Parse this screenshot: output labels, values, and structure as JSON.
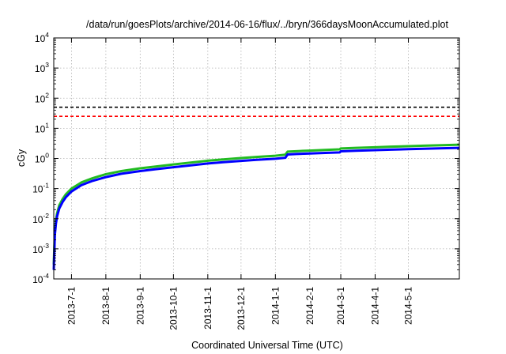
{
  "chart_data": {
    "type": "line",
    "title": "/data/run/goesPlots/archive/2014-06-16/flux/../bryn/366daysMoonAccumulated.plot",
    "xlabel": "Coordinated Universal Time (UTC)",
    "ylabel": "cGy",
    "yscale": "log",
    "ylim": [
      0.0001,
      10000
    ],
    "xlim": [
      "2013-06-15",
      "2014-06-16"
    ],
    "grid": true,
    "x_ticks": [
      "2013-7-1",
      "2013-8-1",
      "2013-9-1",
      "2013-10-1",
      "2013-11-1",
      "2013-12-1",
      "2014-1-1",
      "2014-2-1",
      "2014-3-1",
      "2014-4-1",
      "2014-5-1"
    ],
    "y_ticks": [
      {
        "base": "10",
        "exp": "-4",
        "value": 0.0001
      },
      {
        "base": "10",
        "exp": "-3",
        "value": 0.001
      },
      {
        "base": "10",
        "exp": "-2",
        "value": 0.01
      },
      {
        "base": "10",
        "exp": "-1",
        "value": 0.1
      },
      {
        "base": "10",
        "exp": "0",
        "value": 1
      },
      {
        "base": "10",
        "exp": "1",
        "value": 10
      },
      {
        "base": "10",
        "exp": "2",
        "value": 100
      },
      {
        "base": "10",
        "exp": "3",
        "value": 1000
      },
      {
        "base": "10",
        "exp": "4",
        "value": 10000
      }
    ],
    "thresholds": [
      {
        "value": 50,
        "color": "#000000",
        "style": "dashed"
      },
      {
        "value": 25,
        "color": "#ff0000",
        "style": "dashed"
      }
    ],
    "series": [
      {
        "color": "#22bb22",
        "x": [
          "2013-06-15",
          "2013-06-16",
          "2013-06-17",
          "2013-06-18",
          "2013-06-20",
          "2013-06-23",
          "2013-06-26",
          "2013-07-01",
          "2013-07-10",
          "2013-07-20",
          "2013-08-01",
          "2013-08-15",
          "2013-09-01",
          "2013-09-15",
          "2013-10-01",
          "2013-10-15",
          "2013-11-01",
          "2013-11-15",
          "2013-12-01",
          "2013-12-15",
          "2014-01-01",
          "2014-01-10",
          "2014-01-12",
          "2014-01-20",
          "2014-02-01",
          "2014-02-15",
          "2014-02-28",
          "2014-03-01",
          "2014-03-15",
          "2014-04-01",
          "2014-04-15",
          "2014-05-01",
          "2014-05-15",
          "2014-06-01",
          "2014-06-16"
        ],
        "y": [
          0.0003,
          0.004,
          0.009,
          0.015,
          0.028,
          0.045,
          0.065,
          0.1,
          0.16,
          0.22,
          0.3,
          0.38,
          0.47,
          0.54,
          0.63,
          0.72,
          0.84,
          0.93,
          1.03,
          1.12,
          1.23,
          1.33,
          1.68,
          1.74,
          1.82,
          1.92,
          2.0,
          2.15,
          2.25,
          2.35,
          2.45,
          2.55,
          2.65,
          2.75,
          2.85
        ]
      },
      {
        "color": "#0000ff",
        "x": [
          "2013-06-15",
          "2013-06-16",
          "2013-06-17",
          "2013-06-18",
          "2013-06-20",
          "2013-06-23",
          "2013-06-26",
          "2013-07-01",
          "2013-07-10",
          "2013-07-20",
          "2013-08-01",
          "2013-08-15",
          "2013-09-01",
          "2013-09-15",
          "2013-10-01",
          "2013-10-15",
          "2013-11-01",
          "2013-11-15",
          "2013-12-01",
          "2013-12-15",
          "2014-01-01",
          "2014-01-10",
          "2014-01-12",
          "2014-01-20",
          "2014-02-01",
          "2014-02-15",
          "2014-02-28",
          "2014-03-01",
          "2014-03-15",
          "2014-04-01",
          "2014-04-15",
          "2014-05-01",
          "2014-05-15",
          "2014-06-01",
          "2014-06-16"
        ],
        "y": [
          0.0002,
          0.003,
          0.007,
          0.012,
          0.022,
          0.036,
          0.052,
          0.08,
          0.13,
          0.18,
          0.24,
          0.31,
          0.38,
          0.44,
          0.51,
          0.58,
          0.68,
          0.75,
          0.83,
          0.9,
          0.98,
          1.05,
          1.35,
          1.4,
          1.46,
          1.53,
          1.58,
          1.72,
          1.8,
          1.88,
          1.96,
          2.03,
          2.1,
          2.17,
          2.24
        ]
      }
    ]
  }
}
